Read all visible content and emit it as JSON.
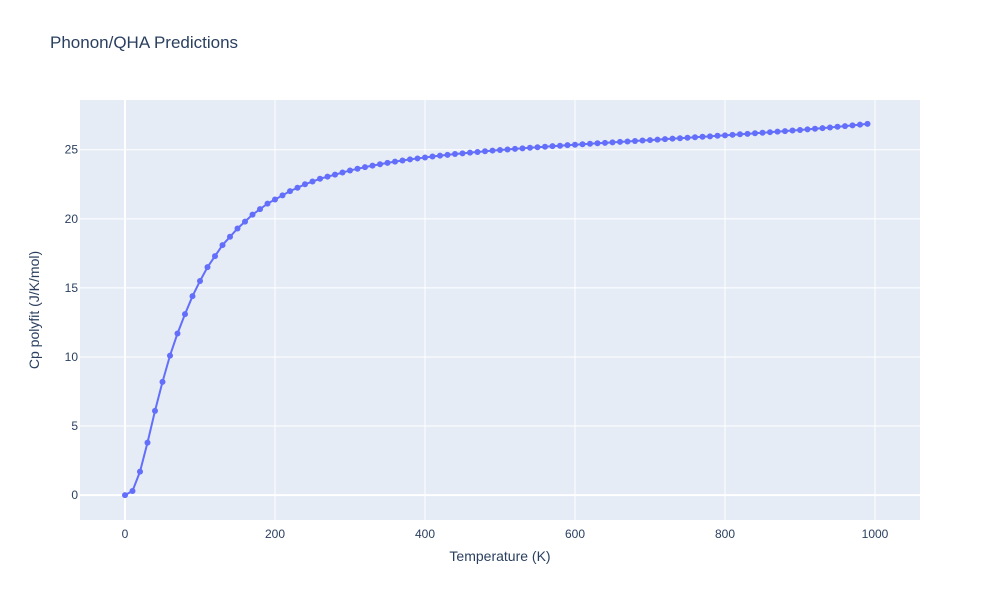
{
  "chart_data": {
    "type": "line",
    "title": "Phonon/QHA Predictions",
    "xlabel": "Temperature (K)",
    "ylabel": "Cp polyfit (J/K/mol)",
    "xlim": [
      -60,
      1060
    ],
    "ylim": [
      -1.8,
      28.6
    ],
    "xticks": [
      0,
      200,
      400,
      600,
      800,
      1000
    ],
    "yticks": [
      0,
      5,
      10,
      15,
      20,
      25
    ],
    "grid": true,
    "legend": "none",
    "colors": {
      "plot_bg": "#e5ecf6",
      "grid": "#ffffff",
      "series": "#636efa",
      "text": "#2a3f5f"
    },
    "series": [
      {
        "mode": "lines+markers",
        "x": [
          0,
          10,
          20,
          30,
          40,
          50,
          60,
          70,
          80,
          90,
          100,
          110,
          120,
          130,
          140,
          150,
          160,
          170,
          180,
          190,
          200,
          210,
          220,
          230,
          240,
          250,
          260,
          270,
          280,
          290,
          300,
          310,
          320,
          330,
          340,
          350,
          360,
          370,
          380,
          390,
          400,
          410,
          420,
          430,
          440,
          450,
          460,
          470,
          480,
          490,
          500,
          510,
          520,
          530,
          540,
          550,
          560,
          570,
          580,
          590,
          600,
          610,
          620,
          630,
          640,
          650,
          660,
          670,
          680,
          690,
          700,
          710,
          720,
          730,
          740,
          750,
          760,
          770,
          780,
          790,
          800,
          810,
          820,
          830,
          840,
          850,
          860,
          870,
          880,
          890,
          900,
          910,
          920,
          930,
          940,
          950,
          960,
          970,
          980,
          990
        ],
        "y": [
          0.0,
          0.3,
          1.7,
          3.8,
          6.1,
          8.2,
          10.1,
          11.7,
          13.1,
          14.4,
          15.5,
          16.5,
          17.3,
          18.1,
          18.7,
          19.3,
          19.8,
          20.3,
          20.7,
          21.1,
          21.4,
          21.7,
          22.0,
          22.25,
          22.5,
          22.7,
          22.9,
          23.05,
          23.2,
          23.35,
          23.5,
          23.62,
          23.74,
          23.85,
          23.95,
          24.05,
          24.14,
          24.22,
          24.3,
          24.37,
          24.44,
          24.51,
          24.57,
          24.63,
          24.69,
          24.74,
          24.79,
          24.84,
          24.89,
          24.94,
          24.98,
          25.02,
          25.06,
          25.1,
          25.14,
          25.18,
          25.22,
          25.26,
          25.29,
          25.33,
          25.36,
          25.4,
          25.43,
          25.47,
          25.5,
          25.53,
          25.57,
          25.6,
          25.63,
          25.67,
          25.7,
          25.73,
          25.77,
          25.8,
          25.83,
          25.87,
          25.9,
          25.94,
          25.97,
          26.01,
          26.04,
          26.08,
          26.12,
          26.15,
          26.19,
          26.23,
          26.27,
          26.31,
          26.35,
          26.39,
          26.43,
          26.47,
          26.52,
          26.56,
          26.61,
          26.66,
          26.71,
          26.76,
          26.82,
          26.87
        ]
      }
    ]
  }
}
